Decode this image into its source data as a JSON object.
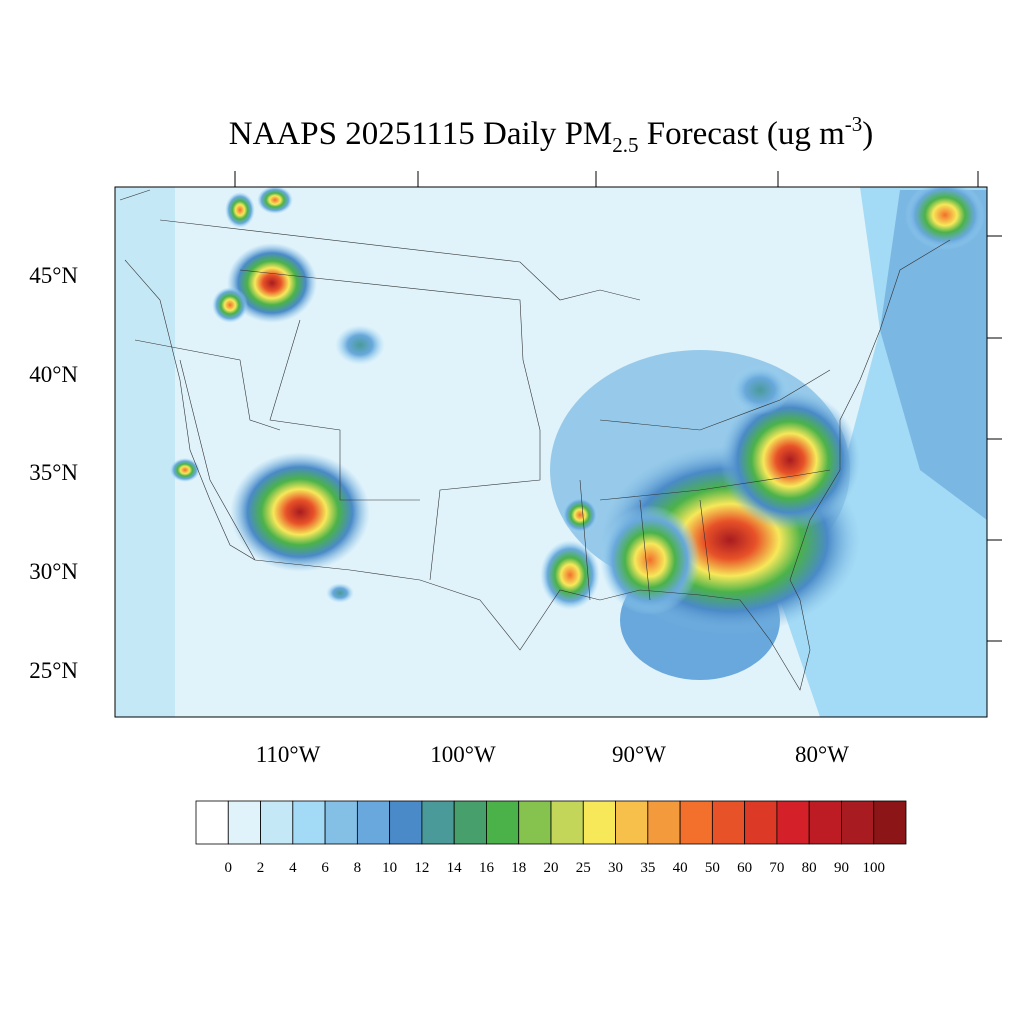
{
  "title": {
    "main": "NAAPS 20251115 Daily PM",
    "subscript": "2.5",
    "rest": " Forecast (ug m",
    "superscript": "-3",
    "close": ")"
  },
  "lat_labels": [
    "45°N",
    "40°N",
    "35°N",
    "30°N",
    "25°N"
  ],
  "lon_labels": [
    "110°W",
    "100°W",
    "90°W",
    "80°W"
  ],
  "colorbar": {
    "levels": [
      0,
      2,
      4,
      6,
      8,
      10,
      12,
      14,
      16,
      18,
      20,
      25,
      30,
      35,
      40,
      50,
      60,
      70,
      80,
      90,
      100
    ],
    "colors": [
      "#ffffff",
      "#e0f3fb",
      "#c5e8f7",
      "#a3daf5",
      "#84bfe6",
      "#68a8dc",
      "#4a8ac8",
      "#4a9a9a",
      "#47a06c",
      "#4bb24a",
      "#86c34e",
      "#c3d65a",
      "#f7e85a",
      "#f7c04a",
      "#f39a3c",
      "#f26f2c",
      "#e85228",
      "#dc3a26",
      "#d42029",
      "#bd1c25",
      "#a81b20",
      "#8c1518"
    ]
  }
}
